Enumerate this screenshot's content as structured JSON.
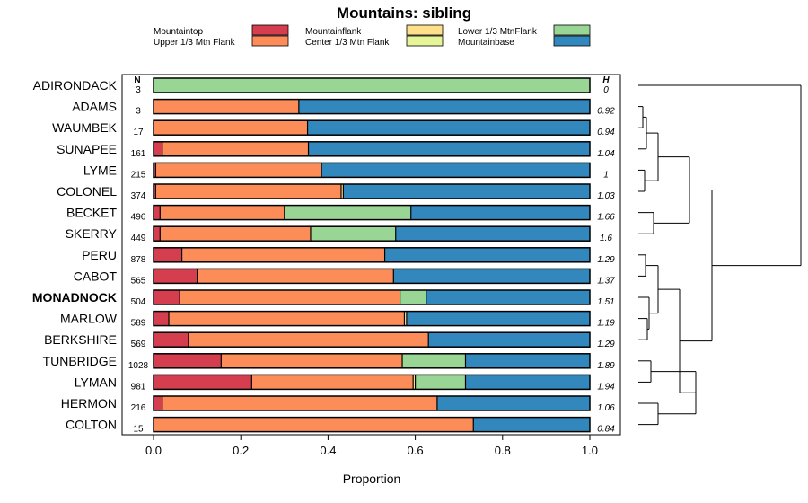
{
  "chart_data": {
    "type": "bar",
    "orientation": "horizontal",
    "stacked": true,
    "title": "Mountains: sibling",
    "xlabel": "Proportion",
    "ylabel": "",
    "xlim": [
      0,
      1
    ],
    "xticks": [
      "0.0",
      "0.2",
      "0.4",
      "0.6",
      "0.8",
      "1.0"
    ],
    "n_header": "N",
    "h_header": "H",
    "legend": [
      {
        "name": "Mountaintop",
        "color": "#d53e4f"
      },
      {
        "name": "Upper 1/3 Mtn Flank",
        "color": "#fc8d59"
      },
      {
        "name": "Mountainflank",
        "color": "#fee08b"
      },
      {
        "name": "Center 1/3 Mtn Flank",
        "color": "#e6f598"
      },
      {
        "name": "Lower 1/3 MtnFlank",
        "color": "#99d594"
      },
      {
        "name": "Mountainbase",
        "color": "#3288bd"
      }
    ],
    "categories": [
      "ADIRONDACK",
      "ADAMS",
      "WAUMBEK",
      "SUNAPEE",
      "LYME",
      "COLONEL",
      "BECKET",
      "SKERRY",
      "PERU",
      "CABOT",
      "MONADNOCK",
      "MARLOW",
      "BERKSHIRE",
      "TUNBRIDGE",
      "LYMAN",
      "HERMON",
      "COLTON"
    ],
    "highlight": "MONADNOCK",
    "n_values": [
      "3",
      "3",
      "17",
      "161",
      "215",
      "374",
      "496",
      "449",
      "878",
      "565",
      "504",
      "589",
      "569",
      "1028",
      "981",
      "216",
      "15"
    ],
    "h_values": [
      "0",
      "0.92",
      "0.94",
      "1.04",
      "1",
      "1.03",
      "1.66",
      "1.6",
      "1.29",
      "1.37",
      "1.51",
      "1.19",
      "1.29",
      "1.89",
      "1.94",
      "1.06",
      "0.84"
    ],
    "series": [
      {
        "name": "Mountaintop",
        "values": [
          0,
          0,
          0,
          0.02,
          0.005,
          0.005,
          0.015,
          0.015,
          0.065,
          0.1,
          0.06,
          0.035,
          0.08,
          0.155,
          0.225,
          0.02,
          0
        ]
      },
      {
        "name": "Upper 1/3 Mtn Flank",
        "values": [
          0,
          0.333,
          0.353,
          0.335,
          0.38,
          0.425,
          0.285,
          0.345,
          0.465,
          0.45,
          0.505,
          0.54,
          0.55,
          0.415,
          0.37,
          0.63,
          0.733
        ]
      },
      {
        "name": "Mountainflank",
        "values": [
          0,
          0,
          0,
          0,
          0,
          0.005,
          0,
          0,
          0,
          0,
          0,
          0.005,
          0,
          0,
          0.005,
          0,
          0
        ]
      },
      {
        "name": "Center 1/3 Mtn Flank",
        "values": [
          0,
          0,
          0,
          0,
          0,
          0,
          0,
          0,
          0,
          0,
          0,
          0,
          0,
          0,
          0,
          0,
          0
        ]
      },
      {
        "name": "Lower 1/3 MtnFlank",
        "values": [
          1,
          0,
          0,
          0,
          0,
          0,
          0.29,
          0.195,
          0,
          0,
          0.06,
          0,
          0,
          0.145,
          0.115,
          0,
          0
        ]
      },
      {
        "name": "Mountainbase",
        "values": [
          0,
          0.667,
          0.647,
          0.645,
          0.615,
          0.565,
          0.41,
          0.445,
          0.47,
          0.45,
          0.375,
          0.42,
          0.37,
          0.285,
          0.285,
          0.35,
          0.267
        ]
      }
    ],
    "dendrogram": {
      "description": "hierarchical clustering of sites",
      "merges": [
        [
          "ADAMS",
          "WAUMBEK"
        ],
        [
          "ADAMS+WAUMBEK",
          "SUNAPEE"
        ],
        [
          "LYME",
          "COLONEL"
        ],
        [
          "ADAMS+WAUMBEK+SUNAPEE",
          "LYME+COLONEL"
        ],
        [
          "BECKET",
          "SKERRY"
        ],
        [
          "ADAMS..COLONEL",
          "BECKET+SKERRY"
        ],
        [
          "PERU",
          "CABOT"
        ],
        [
          "MARLOW",
          "BERKSHIRE"
        ],
        [
          "MONADNOCK",
          "MARLOW+BERKSHIRE"
        ],
        [
          "PERU+CABOT",
          "MONADNOCK+MARLOW+BERKSHIRE"
        ],
        [
          "TUNBRIDGE",
          "LYMAN"
        ],
        [
          "HERMON",
          "COLTON"
        ],
        [
          "TUNBRIDGE+LYMAN",
          "HERMON+COLTON"
        ],
        [
          "PERU..BERKSHIRE",
          "TUNBRIDGE..COLTON"
        ],
        [
          "ADAMS..SKERRY",
          "PERU..COLTON"
        ],
        [
          "ADIRONDACK",
          "REST"
        ]
      ]
    }
  }
}
